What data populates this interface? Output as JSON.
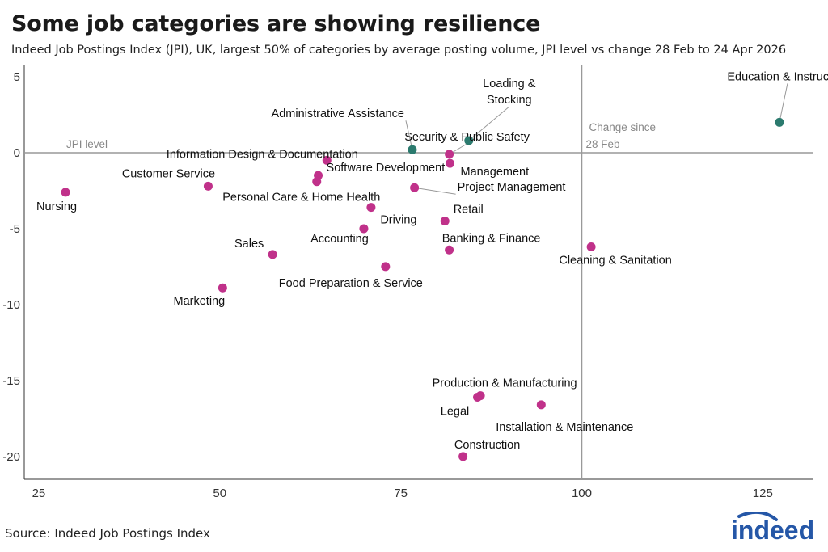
{
  "title": "Some job categories are showing resilience",
  "subtitle": "Indeed Job Postings Index (JPI), UK, largest 50% of categories by average posting volume, JPI level vs change 28 Feb to 24 Apr 2026",
  "source": "Source: Indeed Job Postings Index",
  "logo_text": "indeed",
  "colors": {
    "decline": "#c0318a",
    "growth": "#2b7a6e",
    "brand": "#2557a7",
    "axis": "#999999"
  },
  "chart_data": {
    "type": "scatter",
    "xlim": [
      23,
      132
    ],
    "ylim": [
      -21.5,
      5.8
    ],
    "x_ticks": [
      25,
      50,
      75,
      100,
      125
    ],
    "y_ticks": [
      5,
      0,
      -5,
      -10,
      -15,
      -20
    ],
    "y_tick_labels": [
      "5",
      "0",
      "-5",
      "-10",
      "-15",
      "-20"
    ],
    "reference_lines": {
      "x": 100,
      "y": 0
    },
    "annotations": {
      "y_line_label": "JPI level",
      "x_line_label_1": "Change since",
      "x_line_label_2": "28 Feb"
    },
    "points": [
      {
        "label": "Education & Instruction",
        "x": 127.3,
        "y": 2.0,
        "group": "growth"
      },
      {
        "label": "Loading & Stocking",
        "x": 84.4,
        "y": 0.8,
        "group": "growth"
      },
      {
        "label": "Administrative Assistance",
        "x": 76.6,
        "y": 0.2,
        "group": "growth"
      },
      {
        "label": "Security & Public Safety",
        "x": 81.7,
        "y": -0.1,
        "group": "decline"
      },
      {
        "label": "Management",
        "x": 81.8,
        "y": -0.7,
        "group": "decline"
      },
      {
        "label": "Information Design & Documentation",
        "x": 64.8,
        "y": -0.5,
        "group": "decline"
      },
      {
        "label": "Software Development",
        "x": 63.6,
        "y": -1.5,
        "group": "decline"
      },
      {
        "label": "Personal Care & Home Health",
        "x": 63.4,
        "y": -1.9,
        "group": "decline"
      },
      {
        "label": "Customer Service",
        "x": 48.4,
        "y": -2.2,
        "group": "decline"
      },
      {
        "label": "Project Management",
        "x": 76.9,
        "y": -2.3,
        "group": "decline"
      },
      {
        "label": "Nursing",
        "x": 28.7,
        "y": -2.6,
        "group": "decline"
      },
      {
        "label": "Driving",
        "x": 70.9,
        "y": -3.6,
        "group": "decline"
      },
      {
        "label": "Retail",
        "x": 81.1,
        "y": -4.5,
        "group": "decline"
      },
      {
        "label": "Accounting",
        "x": 69.9,
        "y": -5.0,
        "group": "decline"
      },
      {
        "label": "Banking & Finance",
        "x": 81.7,
        "y": -6.4,
        "group": "decline"
      },
      {
        "label": "Cleaning & Sanitation",
        "x": 101.3,
        "y": -6.2,
        "group": "decline"
      },
      {
        "label": "Sales",
        "x": 57.3,
        "y": -6.7,
        "group": "decline"
      },
      {
        "label": "Food Preparation & Service",
        "x": 72.9,
        "y": -7.5,
        "group": "decline"
      },
      {
        "label": "Marketing",
        "x": 50.4,
        "y": -8.9,
        "group": "decline"
      },
      {
        "label": "Production & Manufacturing",
        "x": 86.0,
        "y": -16.0,
        "group": "decline"
      },
      {
        "label": "Legal",
        "x": 85.6,
        "y": -16.1,
        "group": "decline"
      },
      {
        "label": "Installation & Maintenance",
        "x": 94.4,
        "y": -16.6,
        "group": "decline"
      },
      {
        "label": "Construction",
        "x": 83.6,
        "y": -20.0,
        "group": "decline"
      }
    ]
  }
}
